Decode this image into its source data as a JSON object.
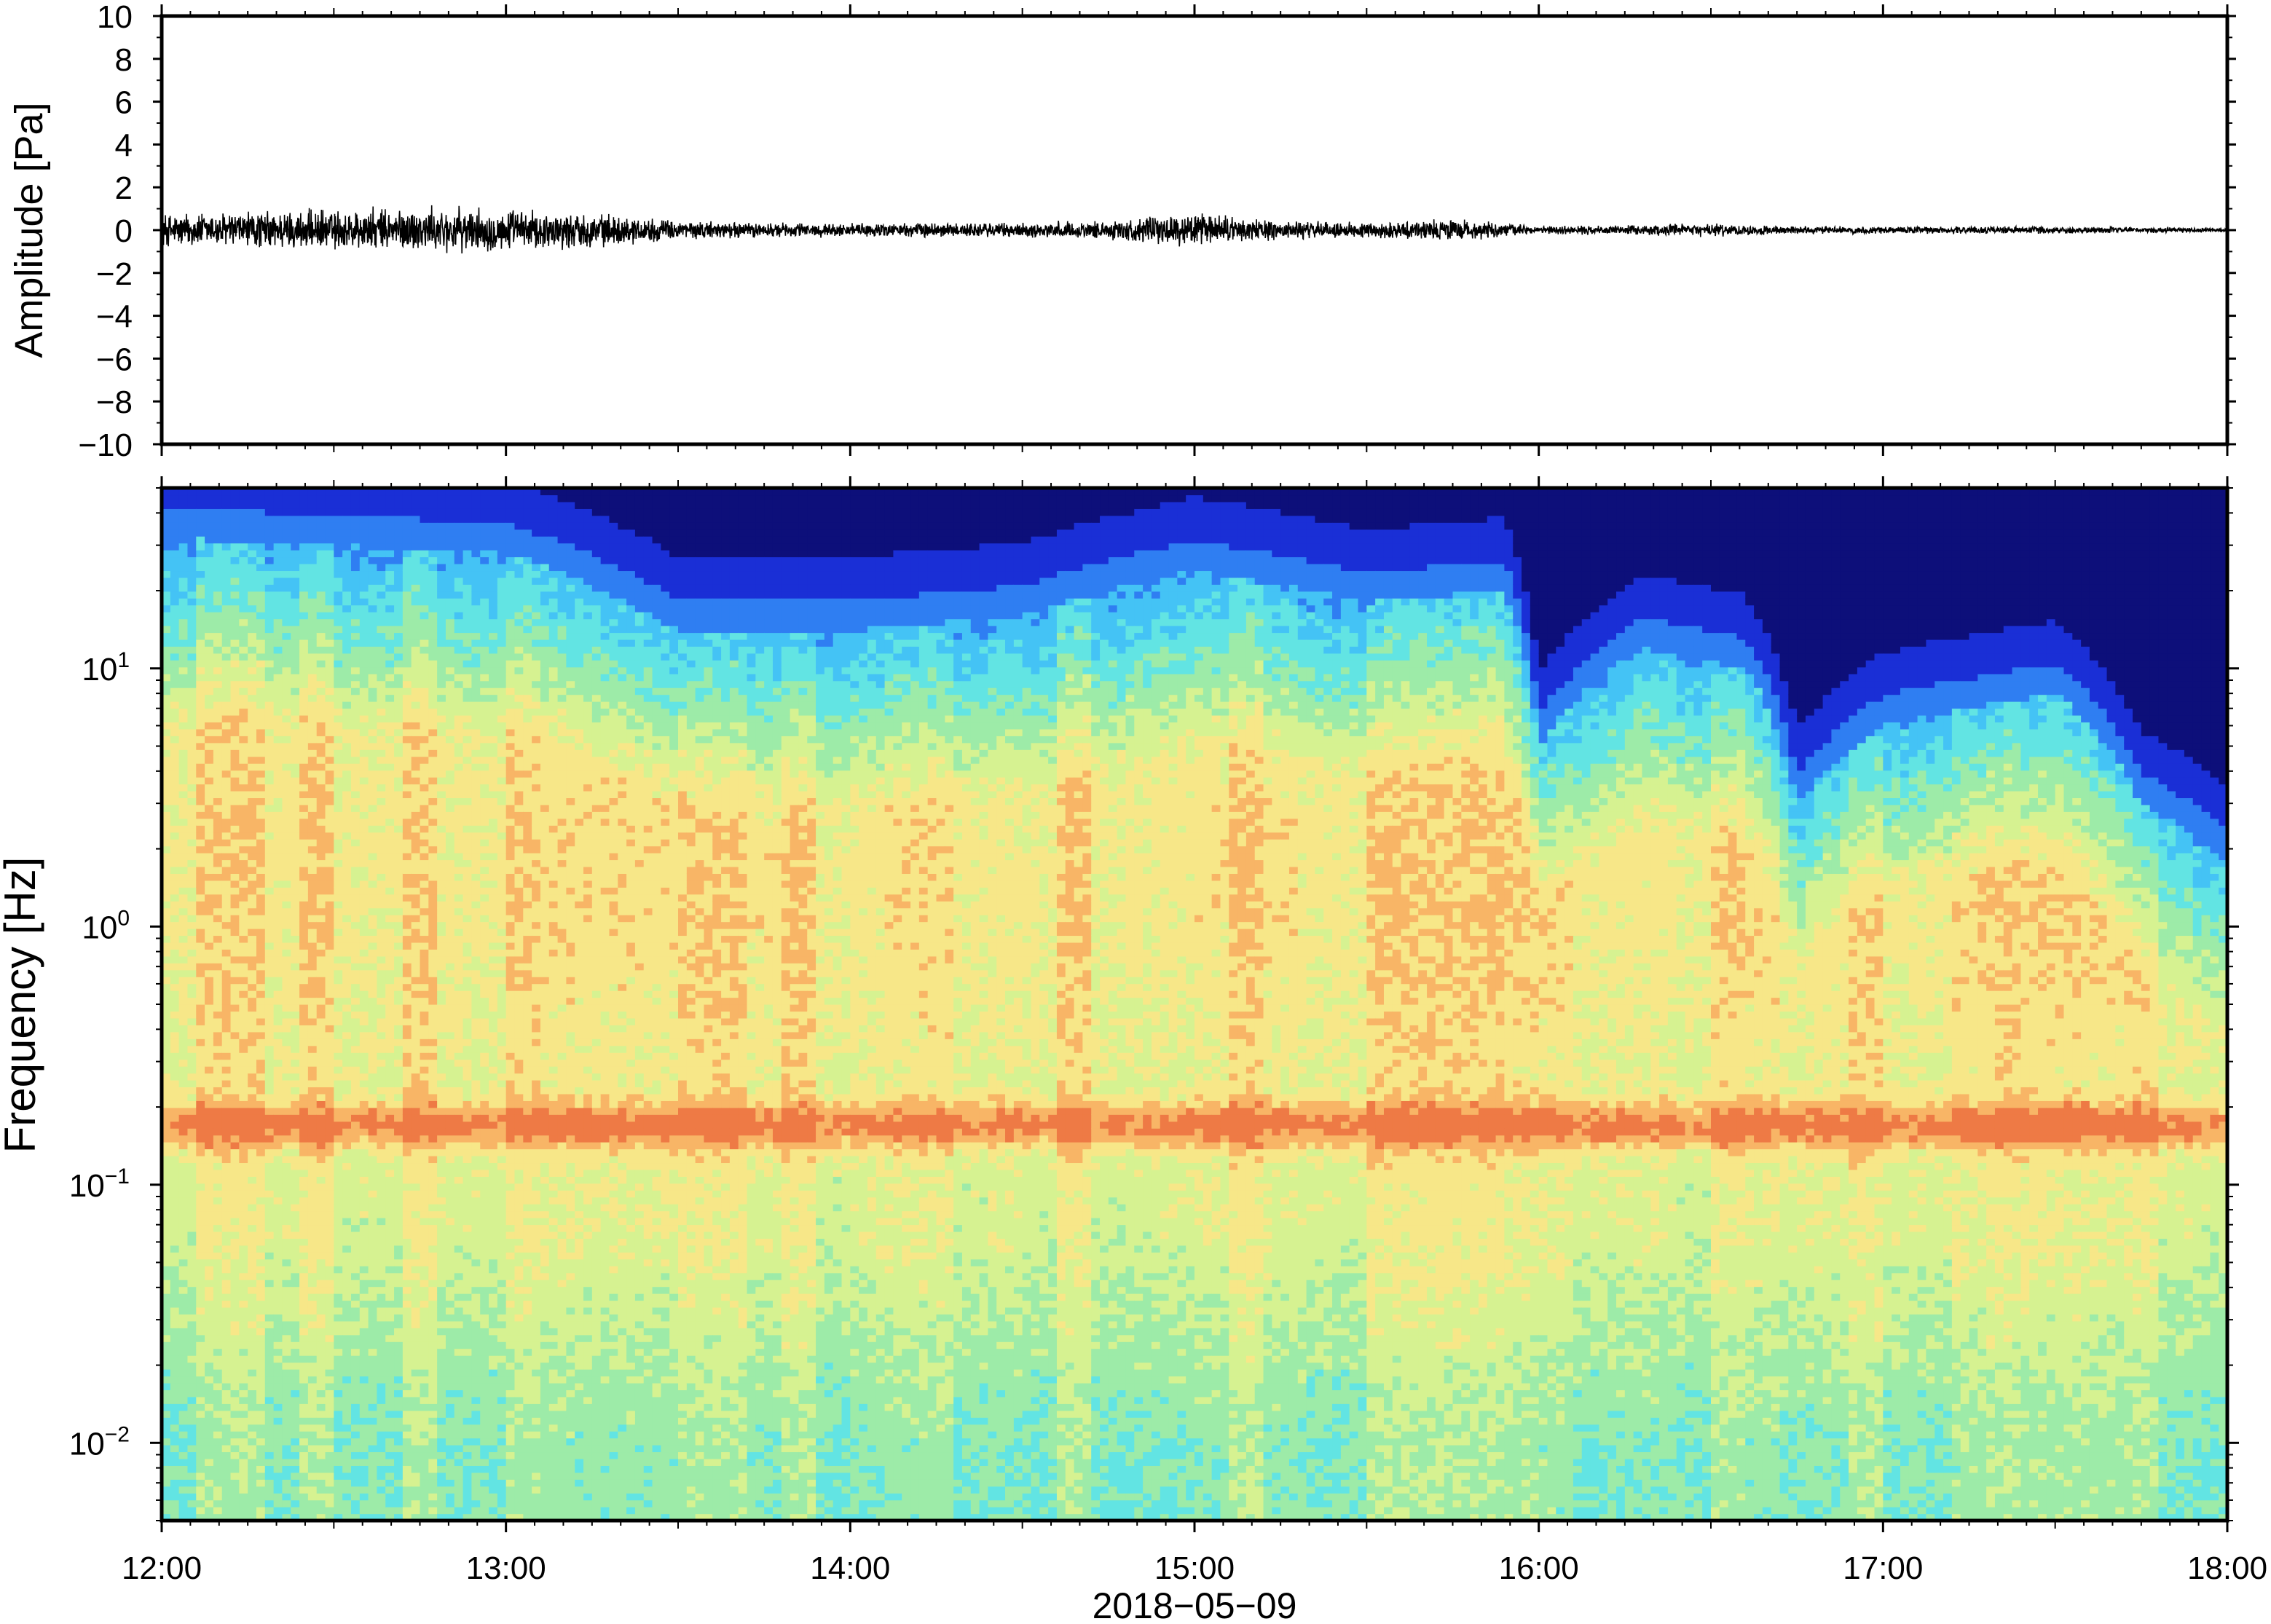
{
  "chart_data": [
    {
      "type": "line",
      "panel": "waveform",
      "ylabel": "Amplitude [Pa]",
      "ylim": [
        -10,
        10
      ],
      "yticks": [
        -10,
        -8,
        -6,
        -4,
        -2,
        0,
        2,
        4,
        6,
        8,
        10
      ],
      "ytick_labels": [
        "−10",
        "−8",
        "−6",
        "−4",
        "−2",
        "0",
        "2",
        "4",
        "6",
        "8",
        "10"
      ],
      "xlim_hours": [
        12,
        18
      ],
      "line_color": "#000000",
      "envelope": {
        "hours": [
          12.0,
          12.25,
          12.5,
          12.75,
          13.0,
          13.25,
          13.5,
          13.75,
          14.0,
          14.25,
          14.5,
          14.75,
          15.0,
          15.25,
          15.5,
          15.75,
          16.0,
          16.25,
          16.5,
          16.75,
          17.0,
          17.25,
          17.5,
          17.75,
          18.0
        ],
        "amplitude_pa": [
          0.9,
          1.0,
          1.1,
          1.2,
          1.1,
          0.9,
          0.5,
          0.4,
          0.35,
          0.4,
          0.4,
          0.5,
          0.9,
          0.5,
          0.4,
          0.6,
          0.2,
          0.25,
          0.35,
          0.2,
          0.2,
          0.2,
          0.2,
          0.15,
          0.12
        ]
      }
    },
    {
      "type": "heatmap",
      "panel": "spectrogram",
      "ylabel": "Frequency [Hz]",
      "yscale": "log",
      "ylim_hz": [
        0.005,
        50
      ],
      "ytick_labels": [
        {
          "value": 0.01,
          "base": "10",
          "exp": "−2"
        },
        {
          "value": 0.1,
          "base": "10",
          "exp": "−1"
        },
        {
          "value": 1,
          "base": "10",
          "exp": "0"
        },
        {
          "value": 10,
          "base": "10",
          "exp": "1"
        }
      ],
      "colormap": [
        "#0d0f7a",
        "#1a2fd6",
        "#2f7ef2",
        "#44c3f5",
        "#62e4e3",
        "#9deba8",
        "#d6f291",
        "#f7e788",
        "#f8b566",
        "#ee7a45"
      ],
      "peak_band_hz": 0.17,
      "high_freq_cutoff_hz": {
        "hours": [
          12.0,
          12.5,
          13.0,
          13.5,
          14.0,
          14.5,
          15.0,
          15.5,
          15.9,
          16.0,
          16.3,
          16.6,
          16.75,
          17.0,
          17.5,
          17.75,
          18.0
        ],
        "cutoff_hz": [
          32,
          30,
          28,
          14,
          14,
          16,
          24,
          18,
          20,
          5,
          12,
          10,
          3,
          6,
          8,
          3,
          1.8
        ]
      }
    }
  ],
  "x_axis": {
    "tick_labels": [
      "12:00",
      "13:00",
      "14:00",
      "15:00",
      "16:00",
      "17:00",
      "18:00"
    ],
    "xlabel": "2018−05−09"
  }
}
